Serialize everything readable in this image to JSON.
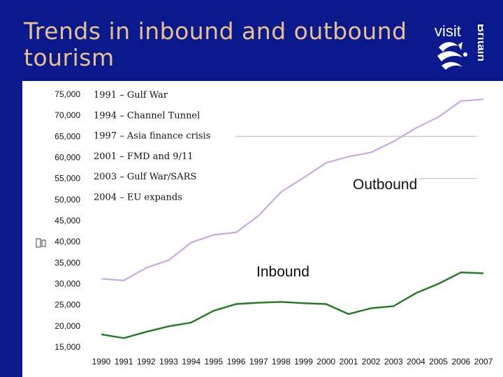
{
  "slide": {
    "title": "Trends in inbound and outbound tourism",
    "logo_text_1": "visit",
    "logo_text_2": "Britain"
  },
  "colors": {
    "background": "#0a1a8c",
    "title": "#e9c08e",
    "outbound": "#c9a8e8",
    "inbound": "#1e7a1e",
    "reference": "#bdbdbd"
  },
  "annotations": [
    "1991 – Gulf War",
    "1994 – Channel Tunnel",
    "1997 – Asia finance crisis",
    "2001 – FMD and 9/11",
    "2003 – Gulf War/SARS",
    "2004 – EU expands"
  ],
  "chart_data": {
    "type": "line",
    "title": "",
    "xlabel": "",
    "ylabel": "",
    "ylim": [
      15000,
      75000
    ],
    "yticks": [
      75000,
      70000,
      65000,
      60000,
      55000,
      50000,
      45000,
      40000,
      35000,
      30000,
      25000,
      20000,
      15000
    ],
    "ytick_labels": [
      "75,000",
      "70,000",
      "65,000",
      "60,000",
      "55,000",
      "50,000",
      "45,000",
      "40,000",
      "35,000",
      "30,000",
      "25,000",
      "20,000",
      "15,000"
    ],
    "x": [
      "1990",
      "1991",
      "1992",
      "1993",
      "1994",
      "1995",
      "1996",
      "1997",
      "1998",
      "1999",
      "2000",
      "2001",
      "2002",
      "2003",
      "2004",
      "2005",
      "2006",
      "2007"
    ],
    "grid": false,
    "reference_lines": [
      65000,
      55000
    ],
    "series": [
      {
        "name": "Outbound",
        "values": [
          31200,
          30800,
          33800,
          35600,
          39800,
          41600,
          42200,
          46200,
          51800,
          55200,
          58700,
          60200,
          61200,
          63800,
          67000,
          69600,
          73400,
          73800
        ]
      },
      {
        "name": "Inbound",
        "values": [
          18000,
          17100,
          18600,
          19900,
          20800,
          23600,
          25200,
          25500,
          25700,
          25400,
          25200,
          22800,
          24200,
          24700,
          27800,
          30000,
          32700,
          32500
        ]
      }
    ]
  }
}
